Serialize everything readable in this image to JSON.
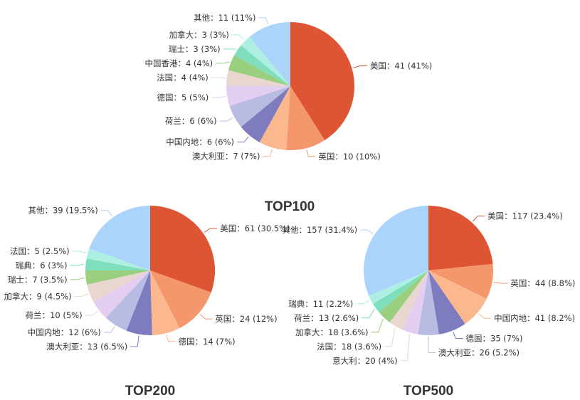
{
  "chart_data": [
    {
      "type": "pie",
      "title": "TOP100",
      "items": [
        {
          "name": "美国",
          "value": 41,
          "label": "美国：41 (41%)"
        },
        {
          "name": "英国",
          "value": 10,
          "label": "英国：10 (10%)"
        },
        {
          "name": "澳大利亚",
          "value": 7,
          "label": "澳大利亚：7 (7%)"
        },
        {
          "name": "中国内地",
          "value": 6,
          "label": "中国内地：6 (6%)"
        },
        {
          "name": "荷兰",
          "value": 6,
          "label": "荷兰：6 (6%)"
        },
        {
          "name": "德国",
          "value": 5,
          "label": "德国：5 (5%)"
        },
        {
          "name": "法国",
          "value": 4,
          "label": "法国：4 (4%)"
        },
        {
          "name": "中国香港",
          "value": 4,
          "label": "中国香港：4 (4%)"
        },
        {
          "name": "瑞士",
          "value": 3,
          "label": "瑞士：3 (3%)"
        },
        {
          "name": "加拿大",
          "value": 3,
          "label": "加拿大：3 (3%)"
        },
        {
          "name": "其他",
          "value": 11,
          "label": "其他：11 (11%)"
        }
      ]
    },
    {
      "type": "pie",
      "title": "TOP200",
      "items": [
        {
          "name": "美国",
          "value": 61,
          "label": "美国：61 (30.5%)"
        },
        {
          "name": "英国",
          "value": 24,
          "label": "英国：24 (12%)"
        },
        {
          "name": "德国",
          "value": 14,
          "label": "德国：14 (7%)"
        },
        {
          "name": "澳大利亚",
          "value": 13,
          "label": "澳大利亚：13 (6.5%)"
        },
        {
          "name": "中国内地",
          "value": 12,
          "label": "中国内地：12 (6%)"
        },
        {
          "name": "荷兰",
          "value": 10,
          "label": "荷兰：10 (5%)"
        },
        {
          "name": "加拿大",
          "value": 9,
          "label": "加拿大：9 (4.5%)"
        },
        {
          "name": "瑞士",
          "value": 7,
          "label": "瑞士：7 (3.5%)"
        },
        {
          "name": "瑞典",
          "value": 6,
          "label": "瑞典：6 (3%)"
        },
        {
          "name": "法国",
          "value": 5,
          "label": "法国：5 (2.5%)"
        },
        {
          "name": "其他",
          "value": 39,
          "label": "其他：39 (19.5%)"
        }
      ]
    },
    {
      "type": "pie",
      "title": "TOP500",
      "items": [
        {
          "name": "美国",
          "value": 117,
          "label": "美国：117 (23.4%)"
        },
        {
          "name": "英国",
          "value": 44,
          "label": "英国：44 (8.8%)"
        },
        {
          "name": "中国内地",
          "value": 41,
          "label": "中国内地：41 (8.2%)"
        },
        {
          "name": "德国",
          "value": 35,
          "label": "德国：35 (7%)"
        },
        {
          "name": "澳大利亚",
          "value": 26,
          "label": "澳大利亚：26 (5.2%)"
        },
        {
          "name": "意大利",
          "value": 20,
          "label": "意大利：20 (4%)"
        },
        {
          "name": "法国",
          "value": 18,
          "label": "法国：18 (3.6%)"
        },
        {
          "name": "加拿大",
          "value": 18,
          "label": "加拿大：18 (3.6%)"
        },
        {
          "name": "荷兰",
          "value": 13,
          "label": "荷兰：13 (2.6%)"
        },
        {
          "name": "瑞典",
          "value": 11,
          "label": "瑞典：11 (2.2%)"
        },
        {
          "name": "其他",
          "value": 157,
          "label": "其他：157 (31.4%)"
        }
      ]
    }
  ],
  "palette": [
    "#dd5533",
    "#f4976c",
    "#fbb88e",
    "#7e7cbf",
    "#b8bce2",
    "#e3cdf0",
    "#e8d6cf",
    "#9acf7f",
    "#7fdfbd",
    "#aeeee3",
    "#abd4fc"
  ]
}
